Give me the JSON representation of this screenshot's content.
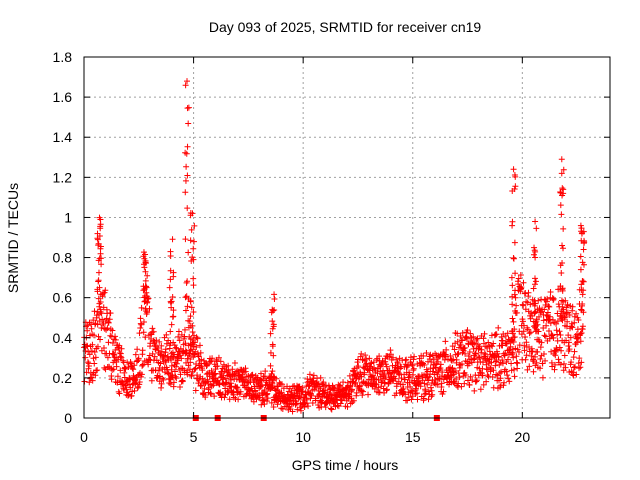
{
  "chart_data": {
    "type": "scatter",
    "title": "Day 093 of 2025, SRMTID for receiver cn19",
    "xlabel": "GPS time / hours",
    "ylabel": "SRMTID / TECUs",
    "xlim": [
      0,
      24
    ],
    "ylim": [
      0,
      1.8
    ],
    "xticks": [
      0,
      5,
      10,
      15,
      20
    ],
    "yticks": [
      0,
      0.2,
      0.4,
      0.6,
      0.8,
      1,
      1.2,
      1.4,
      1.6,
      1.8
    ],
    "xtick_labels": [
      "0",
      "5",
      "10",
      "15",
      "20"
    ],
    "ytick_labels": [
      "0",
      "0.2",
      "0.4",
      "0.6",
      "0.8",
      "1",
      "1.2",
      "1.4",
      "1.6",
      "1.8"
    ],
    "grid": true,
    "marker": "+",
    "color": "#ff0000",
    "trend": [
      [
        0.0,
        0.3
      ],
      [
        0.4,
        0.35
      ],
      [
        0.8,
        0.55
      ],
      [
        1.2,
        0.35
      ],
      [
        1.6,
        0.25
      ],
      [
        2.0,
        0.18
      ],
      [
        2.4,
        0.22
      ],
      [
        2.8,
        0.5
      ],
      [
        3.2,
        0.3
      ],
      [
        3.6,
        0.28
      ],
      [
        4.0,
        0.25
      ],
      [
        4.4,
        0.3
      ],
      [
        4.8,
        0.35
      ],
      [
        5.2,
        0.25
      ],
      [
        5.6,
        0.2
      ],
      [
        6.0,
        0.2
      ],
      [
        6.5,
        0.18
      ],
      [
        7.0,
        0.18
      ],
      [
        7.5,
        0.15
      ],
      [
        8.0,
        0.15
      ],
      [
        8.5,
        0.15
      ],
      [
        9.0,
        0.1
      ],
      [
        9.5,
        0.1
      ],
      [
        10.0,
        0.12
      ],
      [
        10.5,
        0.15
      ],
      [
        11.0,
        0.12
      ],
      [
        11.5,
        0.1
      ],
      [
        12.0,
        0.12
      ],
      [
        12.5,
        0.2
      ],
      [
        13.0,
        0.22
      ],
      [
        13.5,
        0.22
      ],
      [
        14.0,
        0.22
      ],
      [
        14.5,
        0.2
      ],
      [
        15.0,
        0.2
      ],
      [
        15.5,
        0.2
      ],
      [
        16.0,
        0.22
      ],
      [
        16.5,
        0.25
      ],
      [
        17.0,
        0.28
      ],
      [
        17.5,
        0.3
      ],
      [
        18.0,
        0.28
      ],
      [
        18.5,
        0.28
      ],
      [
        19.0,
        0.3
      ],
      [
        19.5,
        0.3
      ],
      [
        19.8,
        0.5
      ],
      [
        20.2,
        0.45
      ],
      [
        20.6,
        0.4
      ],
      [
        21.0,
        0.42
      ],
      [
        21.4,
        0.45
      ],
      [
        21.8,
        0.45
      ],
      [
        22.2,
        0.4
      ],
      [
        22.5,
        0.35
      ],
      [
        22.8,
        0.6
      ]
    ],
    "bursts": [
      {
        "x": 0.7,
        "max": 1.0
      },
      {
        "x": 2.8,
        "max": 0.83
      },
      {
        "x": 4.0,
        "max": 0.9
      },
      {
        "x": 4.7,
        "max": 1.68
      },
      {
        "x": 4.95,
        "max": 1.03
      },
      {
        "x": 8.6,
        "max": 0.62
      },
      {
        "x": 19.6,
        "max": 1.24
      },
      {
        "x": 20.6,
        "max": 1.01
      },
      {
        "x": 21.8,
        "max": 1.29
      },
      {
        "x": 22.75,
        "max": 0.97
      }
    ],
    "outliers": [
      [
        4.7,
        1.68
      ],
      [
        19.6,
        1.24
      ],
      [
        21.8,
        1.29
      ],
      [
        21.8,
        1.22
      ],
      [
        0.75,
        0.99
      ],
      [
        4.95,
        1.02
      ]
    ],
    "zero_markers": [
      5.1,
      6.1,
      8.2,
      16.1
    ]
  }
}
